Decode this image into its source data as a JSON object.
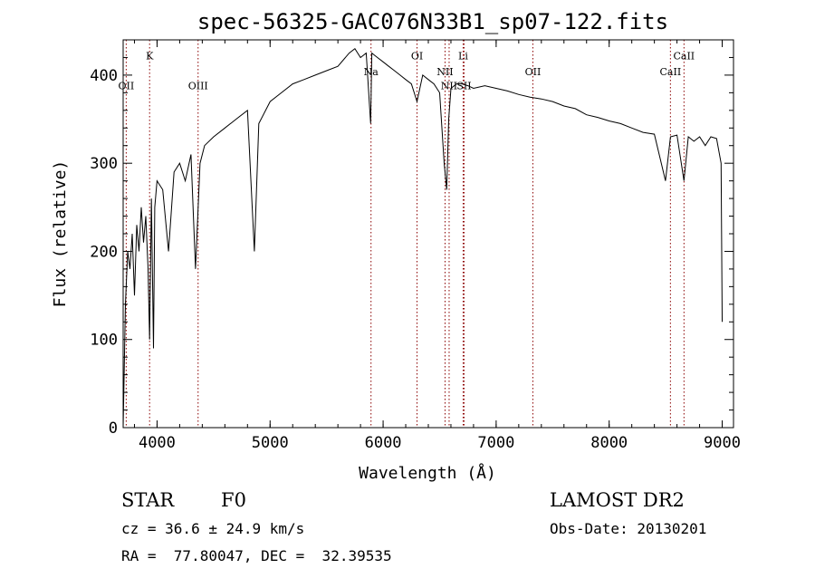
{
  "chart_data": {
    "type": "line",
    "title": "spec-56325-GAC076N33B1_sp07-122.fits",
    "xlabel": "Wavelength (Å)",
    "ylabel": "Flux (relative)",
    "xlim": [
      3700,
      9100
    ],
    "ylim": [
      0,
      440
    ],
    "xticks": [
      4000,
      5000,
      6000,
      7000,
      8000,
      9000
    ],
    "yticks": [
      0,
      100,
      200,
      300,
      400
    ],
    "grid": false,
    "legend": "none",
    "line_color": "#000000",
    "marker_color": "#8b0000",
    "spectrum": {
      "x": [
        3700,
        3720,
        3740,
        3760,
        3780,
        3800,
        3820,
        3840,
        3860,
        3880,
        3900,
        3920,
        3934,
        3950,
        3968,
        3980,
        4000,
        4050,
        4101,
        4150,
        4200,
        4250,
        4300,
        4340,
        4380,
        4420,
        4500,
        4600,
        4700,
        4800,
        4861,
        4900,
        5000,
        5100,
        5200,
        5300,
        5400,
        5500,
        5600,
        5700,
        5750,
        5800,
        5850,
        5890,
        5900,
        5950,
        6000,
        6050,
        6100,
        6150,
        6200,
        6250,
        6300,
        6350,
        6400,
        6450,
        6500,
        6540,
        6563,
        6580,
        6600,
        6650,
        6700,
        6750,
        6800,
        6900,
        7000,
        7100,
        7200,
        7300,
        7400,
        7500,
        7600,
        7700,
        7800,
        7900,
        8000,
        8100,
        8200,
        8300,
        8400,
        8498,
        8542,
        8600,
        8662,
        8700,
        8750,
        8800,
        8850,
        8900,
        8950,
        8990,
        9000
      ],
      "y": [
        0,
        140,
        200,
        180,
        220,
        150,
        230,
        200,
        250,
        210,
        240,
        180,
        100,
        260,
        90,
        250,
        280,
        270,
        200,
        290,
        300,
        280,
        310,
        180,
        300,
        320,
        330,
        340,
        350,
        360,
        200,
        345,
        370,
        380,
        390,
        395,
        400,
        405,
        410,
        425,
        430,
        420,
        425,
        345,
        425,
        420,
        415,
        410,
        405,
        400,
        395,
        390,
        370,
        400,
        395,
        390,
        380,
        300,
        270,
        350,
        385,
        390,
        390,
        388,
        385,
        388,
        385,
        382,
        378,
        375,
        373,
        370,
        365,
        362,
        355,
        352,
        348,
        345,
        340,
        335,
        333,
        280,
        330,
        332,
        280,
        330,
        325,
        330,
        320,
        330,
        328,
        300,
        120
      ]
    },
    "lines": [
      {
        "label": "K",
        "x": 3934,
        "label_y": 418
      },
      {
        "label": "OII",
        "x": 3727,
        "label_y": 384
      },
      {
        "label": "OIII",
        "x": 4363,
        "label_y": 384
      },
      {
        "label": "Na",
        "x": 5893,
        "label_y": 400
      },
      {
        "label": "OI",
        "x": 6300,
        "label_y": 418
      },
      {
        "label": "NII",
        "x": 6548,
        "label_y": 400
      },
      {
        "label": "Li",
        "x": 6708,
        "label_y": 418
      },
      {
        "label": "NII",
        "x": 6584,
        "label_y": 384
      },
      {
        "label": "SII",
        "x": 6716,
        "label_y": 384
      },
      {
        "label": "OII",
        "x": 7325,
        "label_y": 400
      },
      {
        "label": "CaII",
        "x": 8542,
        "label_y": 400
      },
      {
        "label": "CaII",
        "x": 8662,
        "label_y": 418
      }
    ]
  },
  "info": {
    "class_label": "STAR",
    "subclass": "F0",
    "survey": "LAMOST DR2",
    "redshift": "cz = 36.6 ± 24.9 km/s",
    "obs_date": "Obs-Date: 20130201",
    "coords": "RA =  77.80047, DEC =  32.39535"
  }
}
